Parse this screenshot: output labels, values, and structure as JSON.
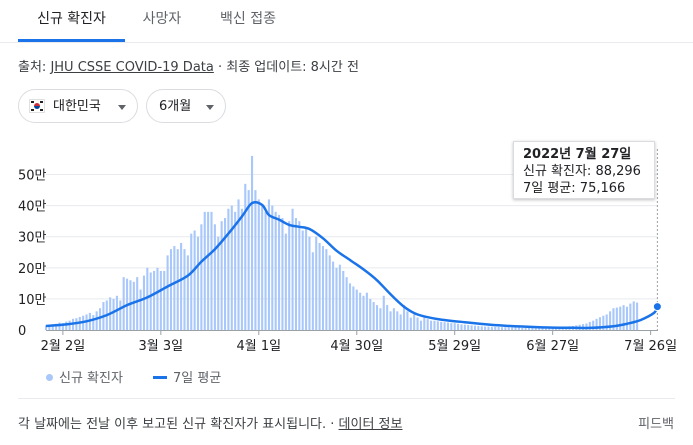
{
  "tabs": [
    {
      "label": "신규 확진자",
      "active": true
    },
    {
      "label": "사망자",
      "active": false
    },
    {
      "label": "백신 접종",
      "active": false
    }
  ],
  "source": {
    "prefix": "출처: ",
    "link": "JHU CSSE COVID-19 Data",
    "suffix": " · 최종 업데이트: 8시간 전"
  },
  "filters": {
    "region": {
      "label": "대한민국",
      "flag": "south-korea-flag-icon"
    },
    "period": {
      "label": "6개월"
    }
  },
  "tooltip": {
    "date": "2022년 7월 27일",
    "line1": "신규 확진자: 88,296",
    "line2": "7일 평균: 75,166"
  },
  "legend": {
    "bars": "신규 확진자",
    "line": "7일 평균"
  },
  "footer": {
    "note": "각 날짜에는 전날 이후 보고된 신규 확진자가 표시됩니다. · ",
    "link": "데이터 정보",
    "feedback": "피드백"
  },
  "colors": {
    "bar": "#a8c7fa",
    "line": "#1a73e8",
    "grid": "#e8eaed"
  },
  "chart_data": {
    "type": "bar",
    "title": "",
    "xlabel": "",
    "ylabel": "",
    "ylim": [
      0,
      550000
    ],
    "yticks": [
      {
        "value": 0,
        "label": "0"
      },
      {
        "value": 100000,
        "label": "10만"
      },
      {
        "value": 200000,
        "label": "20만"
      },
      {
        "value": 300000,
        "label": "30만"
      },
      {
        "value": 400000,
        "label": "40만"
      },
      {
        "value": 500000,
        "label": "50만"
      }
    ],
    "x_start": "2022-01-28",
    "x_end": "2022-07-27",
    "xticks": [
      {
        "date": "2022-02-02",
        "label": "2월 2일"
      },
      {
        "date": "2022-03-03",
        "label": "3월 3일"
      },
      {
        "date": "2022-04-01",
        "label": "4월 1일"
      },
      {
        "date": "2022-04-30",
        "label": "4월 30일"
      },
      {
        "date": "2022-05-29",
        "label": "5월 29일"
      },
      {
        "date": "2022-06-27",
        "label": "6월 27일"
      },
      {
        "date": "2022-07-26",
        "label": "7월 26일"
      }
    ],
    "series": [
      {
        "name": "신규 확진자",
        "kind": "bar",
        "values": [
          15000,
          17000,
          18500,
          20000,
          24000,
          22000,
          27000,
          30000,
          36000,
          38000,
          42000,
          46000,
          50000,
          55000,
          48000,
          60000,
          70000,
          90000,
          95000,
          105000,
          100000,
          110000,
          95000,
          170000,
          165000,
          160000,
          155000,
          170000,
          130000,
          175000,
          200000,
          185000,
          190000,
          200000,
          190000,
          190000,
          240000,
          260000,
          270000,
          260000,
          280000,
          260000,
          240000,
          310000,
          320000,
          300000,
          340000,
          380000,
          380000,
          380000,
          340000,
          300000,
          350000,
          360000,
          390000,
          400000,
          380000,
          420000,
          390000,
          470000,
          450000,
          560000,
          450000,
          420000,
          400000,
          380000,
          420000,
          400000,
          380000,
          370000,
          360000,
          310000,
          350000,
          390000,
          360000,
          350000,
          320000,
          330000,
          300000,
          250000,
          300000,
          280000,
          270000,
          260000,
          240000,
          220000,
          200000,
          210000,
          190000,
          170000,
          150000,
          140000,
          130000,
          120000,
          110000,
          120000,
          100000,
          90000,
          80000,
          70000,
          110000,
          80000,
          60000,
          70000,
          60000,
          50000,
          80000,
          60000,
          40000,
          50000,
          40000,
          30000,
          40000,
          35000,
          30000,
          30000,
          28000,
          26000,
          25000,
          24000,
          22000,
          22000,
          20000,
          18000,
          17000,
          16000,
          15000,
          14000,
          13000,
          12000,
          11000,
          11000,
          10000,
          10000,
          10000,
          9000,
          9000,
          9000,
          8000,
          8000,
          8000,
          7000,
          7000,
          7000,
          7000,
          7000,
          7000,
          6000,
          7000,
          7000,
          8000,
          8000,
          8000,
          9000,
          10000,
          12000,
          13000,
          15000,
          17000,
          19000,
          21000,
          26000,
          30000,
          36000,
          41000,
          46000,
          50000,
          60000,
          70000,
          72000,
          75000,
          80000,
          75000,
          85000,
          92000,
          88296
        ]
      },
      {
        "name": "7일 평균",
        "kind": "line",
        "points": [
          [
            0,
            13000
          ],
          [
            6,
            18000
          ],
          [
            12,
            28000
          ],
          [
            18,
            48000
          ],
          [
            24,
            80000
          ],
          [
            30,
            105000
          ],
          [
            36,
            140000
          ],
          [
            42,
            175000
          ],
          [
            46,
            220000
          ],
          [
            50,
            260000
          ],
          [
            54,
            310000
          ],
          [
            58,
            365000
          ],
          [
            61,
            408000
          ],
          [
            64,
            402000
          ],
          [
            66,
            370000
          ],
          [
            69,
            355000
          ],
          [
            72,
            338000
          ],
          [
            75,
            332000
          ],
          [
            78,
            325000
          ],
          [
            82,
            295000
          ],
          [
            86,
            255000
          ],
          [
            90,
            225000
          ],
          [
            94,
            195000
          ],
          [
            98,
            160000
          ],
          [
            102,
            115000
          ],
          [
            106,
            75000
          ],
          [
            110,
            50000
          ],
          [
            116,
            35000
          ],
          [
            124,
            25000
          ],
          [
            134,
            15000
          ],
          [
            146,
            9000
          ],
          [
            156,
            7000
          ],
          [
            162,
            7000
          ],
          [
            168,
            12000
          ],
          [
            172,
            20000
          ],
          [
            176,
            32000
          ],
          [
            180,
            55000
          ],
          [
            181,
            75166
          ]
        ]
      }
    ]
  }
}
